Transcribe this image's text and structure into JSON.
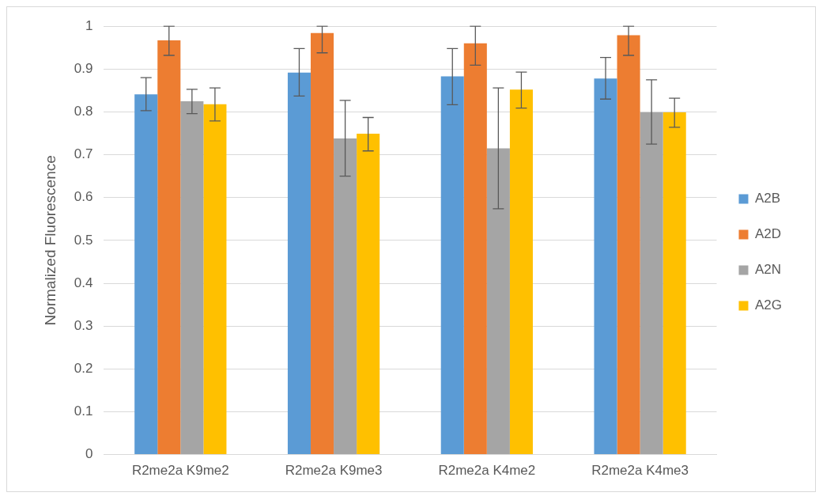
{
  "chart_data": {
    "type": "bar",
    "ylabel": "Normalized Fluorescence",
    "categories": [
      "R2me2a K9me2",
      "R2me2a K9me3",
      "R2me2a K4me2",
      "R2me2a K4me3"
    ],
    "series": [
      {
        "name": "A2B",
        "color": "#5b9bd5",
        "values": [
          0.841,
          0.892,
          0.883,
          0.878
        ],
        "errors": [
          [
            0.803,
            0.88
          ],
          [
            0.837,
            0.948
          ],
          [
            0.817,
            0.948
          ],
          [
            0.83,
            0.927
          ]
        ]
      },
      {
        "name": "A2D",
        "color": "#ed7d31",
        "values": [
          0.967,
          0.984,
          0.96,
          0.979
        ],
        "errors": [
          [
            0.932,
            1.0
          ],
          [
            0.938,
            1.0
          ],
          [
            0.909,
            1.0
          ],
          [
            0.932,
            1.0
          ]
        ]
      },
      {
        "name": "A2N",
        "color": "#a5a5a5",
        "values": [
          0.825,
          0.738,
          0.715,
          0.799
        ],
        "errors": [
          [
            0.796,
            0.853
          ],
          [
            0.65,
            0.827
          ],
          [
            0.574,
            0.856
          ],
          [
            0.725,
            0.875
          ]
        ]
      },
      {
        "name": "A2G",
        "color": "#ffc000",
        "values": [
          0.818,
          0.749,
          0.852,
          0.799
        ],
        "errors": [
          [
            0.779,
            0.856
          ],
          [
            0.709,
            0.787
          ],
          [
            0.809,
            0.893
          ],
          [
            0.764,
            0.832
          ]
        ]
      }
    ],
    "ylim": [
      0,
      1
    ],
    "yticks": [
      0,
      0.1,
      0.2,
      0.3,
      0.4,
      0.5,
      0.6,
      0.7,
      0.8,
      0.9,
      1
    ],
    "grid": "y",
    "legend": "right"
  }
}
